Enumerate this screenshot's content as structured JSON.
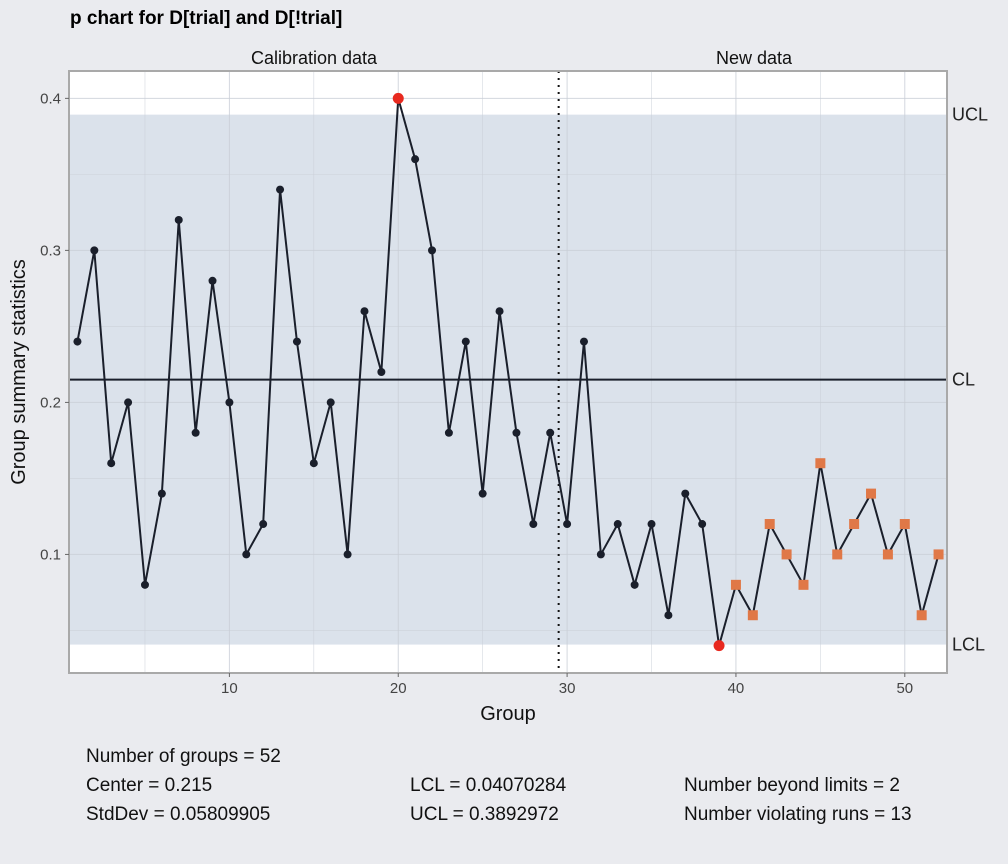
{
  "chart_data": {
    "type": "line",
    "title": "p chart for D[trial] and D[!trial]",
    "xlabel": "Group",
    "ylabel": "Group summary statistics",
    "section_labels": [
      "Calibration data",
      "New data"
    ],
    "calibration_end": 29.5,
    "xlim": [
      0.5,
      52.5
    ],
    "ylim": [
      0.022,
      0.418
    ],
    "x_ticks": [
      10,
      20,
      30,
      40,
      50
    ],
    "y_ticks": [
      0.1,
      0.2,
      0.3,
      0.4
    ],
    "grid": true,
    "limits": {
      "UCL": 0.3892972,
      "CL": 0.215,
      "LCL": 0.04070284
    },
    "limit_labels": [
      "UCL",
      "CL",
      "LCL"
    ],
    "series": [
      {
        "x": [
          1,
          2,
          3,
          4,
          5,
          6,
          7,
          8,
          9,
          10,
          11,
          12,
          13,
          14,
          15,
          16,
          17,
          18,
          19,
          20,
          21,
          22,
          23,
          24,
          25,
          26,
          27,
          28,
          29,
          30,
          31,
          32,
          33,
          34,
          35,
          36,
          37,
          38,
          39,
          40,
          41,
          42,
          43,
          44,
          45,
          46,
          47,
          48,
          49,
          50,
          51,
          52
        ],
        "values": [
          0.24,
          0.3,
          0.16,
          0.2,
          0.08,
          0.14,
          0.32,
          0.18,
          0.28,
          0.2,
          0.1,
          0.12,
          0.34,
          0.24,
          0.16,
          0.2,
          0.1,
          0.26,
          0.22,
          0.4,
          0.36,
          0.3,
          0.18,
          0.24,
          0.14,
          0.26,
          0.18,
          0.12,
          0.18,
          0.12,
          0.24,
          0.1,
          0.12,
          0.08,
          0.12,
          0.06,
          0.14,
          0.12,
          0.04,
          0.08,
          0.06,
          0.12,
          0.1,
          0.08,
          0.16,
          0.1,
          0.12,
          0.14,
          0.1,
          0.12,
          0.06,
          0.1
        ]
      }
    ],
    "beyond_limits": [
      20,
      39
    ],
    "violating_runs": [
      40,
      41,
      42,
      43,
      44,
      45,
      46,
      47,
      48,
      49,
      50,
      51,
      52
    ],
    "colors": {
      "band": "#dbe2eb",
      "line": "#1a1f2b",
      "beyond": "#e8291f",
      "violating": "#e07847",
      "axis_box": "#a9a9a9"
    }
  },
  "stats": {
    "n_groups": "Number of groups = 52",
    "center": "Center = 0.215",
    "stddev": "StdDev = 0.05809905",
    "lcl": "LCL = 0.04070284",
    "ucl": "UCL = 0.3892972",
    "beyond": "Number beyond limits = 2",
    "violating": "Number violating runs = 13"
  }
}
